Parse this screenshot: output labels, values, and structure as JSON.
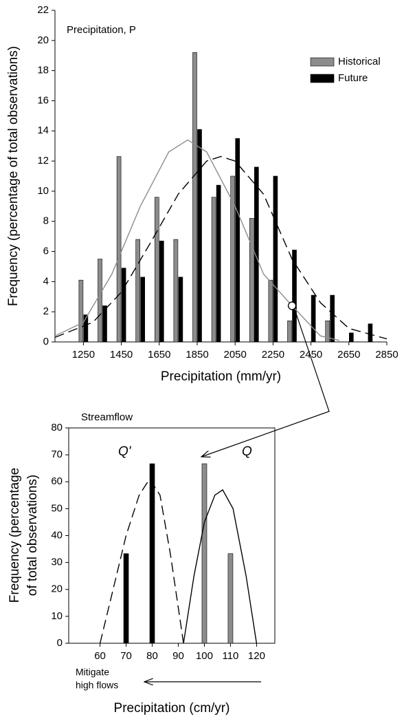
{
  "chart_data": [
    {
      "type": "bar",
      "annotation": "Precipitation, P",
      "xlabel": "Precipitation (mm/yr)",
      "ylabel": [
        "Frequency (percentage of total observations)"
      ],
      "xlim": [
        1100,
        2850
      ],
      "xticks": [
        1250,
        1450,
        1650,
        1850,
        2050,
        2250,
        2450,
        2650,
        2850
      ],
      "ylim": [
        0,
        22
      ],
      "yticks": [
        0,
        2,
        4,
        6,
        8,
        10,
        12,
        14,
        16,
        18,
        20,
        22
      ],
      "frame": false,
      "legend": "upper right",
      "series": [
        {
          "name": "Historical",
          "color": "#8c8c8c",
          "x": [
            1250,
            1350,
            1450,
            1550,
            1650,
            1750,
            1850,
            1950,
            2050,
            2150,
            2250,
            2350,
            2550
          ],
          "values": [
            4.1,
            5.5,
            12.3,
            6.8,
            9.6,
            6.8,
            19.2,
            9.6,
            11.0,
            8.2,
            4.1,
            1.4,
            1.4
          ]
        },
        {
          "name": "Future",
          "color": "#000000",
          "x": [
            1250,
            1350,
            1450,
            1550,
            1650,
            1750,
            1850,
            1950,
            2050,
            2150,
            2250,
            2350,
            2450,
            2550,
            2650,
            2750
          ],
          "values": [
            1.8,
            2.4,
            4.9,
            4.3,
            6.7,
            4.3,
            14.1,
            10.4,
            13.5,
            11.6,
            11.0,
            6.1,
            3.1,
            3.1,
            0.6,
            1.2
          ]
        },
        {
          "type": "line",
          "color": "#8c8c8c",
          "dash": false,
          "x": [
            1100,
            1250,
            1400,
            1550,
            1700,
            1800,
            1900,
            2050,
            2200,
            2350,
            2500,
            2600
          ],
          "values": [
            0.4,
            1.3,
            4.5,
            9.0,
            12.6,
            13.4,
            12.6,
            9.0,
            4.5,
            2.4,
            0.4,
            0.1
          ]
        },
        {
          "type": "line",
          "color": "#000000",
          "dash": true,
          "x": [
            1100,
            1300,
            1450,
            1600,
            1750,
            1900,
            1975,
            2050,
            2200,
            2350,
            2500,
            2650,
            2850
          ],
          "values": [
            0.3,
            1.3,
            3.3,
            6.5,
            9.8,
            12.0,
            12.3,
            12.0,
            9.8,
            5.5,
            2.6,
            0.9,
            0.2
          ]
        }
      ],
      "highlight": {
        "x": 2350,
        "y": 2.4
      }
    },
    {
      "type": "bar",
      "annotation": "Streamflow",
      "xlabel": "Precipitation (cm/yr)",
      "ylabel": [
        "Frequency (percentage",
        "of total observations)"
      ],
      "xlim": [
        48,
        127
      ],
      "xticks": [
        60,
        70,
        80,
        90,
        100,
        110,
        120
      ],
      "ylim": [
        0,
        80
      ],
      "yticks": [
        0,
        10,
        20,
        30,
        40,
        50,
        60,
        70,
        80
      ],
      "frame": true,
      "series": [
        {
          "color": "#000000",
          "x": [
            70,
            80
          ],
          "values": [
            33.3,
            66.7
          ]
        },
        {
          "color": "#8c8c8c",
          "x": [
            100,
            110
          ],
          "values": [
            66.7,
            33.3
          ]
        },
        {
          "type": "line",
          "color": "#000000",
          "dash": true,
          "label": "Q'",
          "x": [
            60,
            65,
            70,
            75,
            79,
            83,
            87,
            92
          ],
          "values": [
            0,
            20,
            40,
            55,
            61,
            55,
            33,
            0
          ]
        },
        {
          "type": "line",
          "color": "#000000",
          "dash": false,
          "label": "Q",
          "x": [
            92,
            96,
            100,
            104,
            107,
            111,
            116,
            120
          ],
          "values": [
            0,
            25,
            45,
            55,
            57,
            50,
            25,
            0
          ]
        }
      ],
      "note": [
        "Mitigate",
        "high flows"
      ]
    }
  ]
}
